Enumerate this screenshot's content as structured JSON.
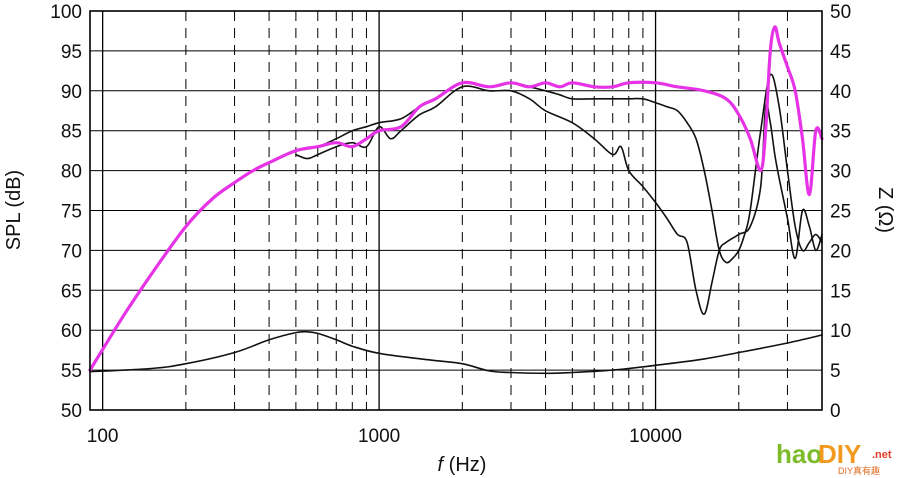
{
  "chart_data": {
    "type": "line",
    "xlabel_italic": "f",
    "xlabel_rest": " (Hz)",
    "ylabel": "SPL (dB)",
    "y2label": "Z (Ω)",
    "x_scale": "log",
    "xlim": [
      90,
      40000
    ],
    "ylim": [
      50,
      100
    ],
    "y2lim": [
      0,
      50
    ],
    "x_ticks": [
      100,
      1000,
      10000
    ],
    "x_tick_labels": [
      "100",
      "1000",
      "10000"
    ],
    "y_ticks": [
      50,
      55,
      60,
      65,
      70,
      75,
      80,
      85,
      90,
      95,
      100
    ],
    "y_tick_labels": [
      "50",
      "55",
      "60",
      "65",
      "70",
      "75",
      "80",
      "85",
      "90",
      "95",
      "100"
    ],
    "y2_ticks": [
      0,
      5,
      10,
      15,
      20,
      25,
      30,
      35,
      40,
      45,
      50
    ],
    "y2_tick_labels": [
      "0",
      "5",
      "10",
      "15",
      "20",
      "25",
      "30",
      "35",
      "40",
      "45",
      "50"
    ],
    "grid": true,
    "colors": {
      "spl_axis": "#000000",
      "spl_black": "#111111",
      "spl_magenta": "#e633e6",
      "impedance": "#111111"
    },
    "series": [
      {
        "axis": "left",
        "color": "#e633e6",
        "width": 3.2,
        "x": [
          90,
          120,
          150,
          200,
          250,
          300,
          350,
          400,
          500,
          600,
          700,
          800,
          900,
          1000,
          1200,
          1400,
          1600,
          2000,
          2500,
          3000,
          3500,
          4000,
          4500,
          5000,
          6000,
          7000,
          8000,
          10000,
          12000,
          15000,
          18000,
          20000,
          22000,
          24000,
          25000,
          26000,
          27000,
          28000,
          30000,
          32000,
          34000,
          36000,
          38000,
          40000
        ],
        "y": [
          55,
          62,
          67,
          73,
          76.5,
          78.5,
          80,
          81,
          82.5,
          83,
          83.5,
          83,
          84,
          85,
          85.5,
          88,
          89,
          91,
          90.5,
          91,
          90.5,
          91,
          90.5,
          91,
          90.5,
          90.5,
          91,
          91,
          90.5,
          90,
          89,
          87,
          84,
          80,
          85,
          95,
          98,
          96,
          93,
          90,
          84,
          77,
          85,
          84
        ]
      },
      {
        "axis": "left",
        "color": "#111111",
        "width": 1.6,
        "x": [
          500,
          600,
          700,
          800,
          900,
          1000,
          1200,
          1400,
          1600,
          2000,
          2500,
          3000,
          3500,
          4000,
          4500,
          5000,
          6000,
          7000,
          8000,
          9000,
          10000,
          11000,
          12000,
          13000,
          14000,
          15000,
          16000,
          17000,
          18000,
          19000,
          20000,
          21000,
          22000,
          24000,
          26000,
          28000,
          30000,
          32000,
          34000,
          36000,
          38000,
          40000
        ],
        "y": [
          82.5,
          83,
          84,
          85,
          85.5,
          86,
          86.5,
          88,
          89,
          91,
          90.5,
          91,
          90.5,
          90,
          89.5,
          89,
          89,
          89,
          89,
          89,
          88.5,
          88,
          87.5,
          86,
          84,
          80,
          75,
          70,
          68.5,
          69,
          70,
          72,
          75,
          85,
          92,
          88,
          80,
          73,
          70,
          71,
          72,
          71
        ]
      },
      {
        "axis": "left",
        "color": "#111111",
        "width": 1.6,
        "x": [
          500,
          550,
          600,
          700,
          800,
          900,
          1000,
          1100,
          1200,
          1400,
          1600,
          2000,
          2500,
          3000,
          3500,
          4000,
          5000,
          6000,
          7000,
          7500,
          8000,
          9000,
          10000,
          11000,
          12000,
          13000,
          14000,
          15000,
          16000,
          17000,
          18000,
          20000,
          22000,
          24000,
          25000,
          26000,
          27000,
          28000,
          30000,
          32000,
          34000,
          36000,
          38000,
          40000
        ],
        "y": [
          82,
          81.5,
          82,
          83,
          83.5,
          83,
          85.5,
          84,
          85,
          87,
          88,
          90.5,
          90,
          90,
          89,
          87.5,
          86,
          84,
          82,
          83,
          80,
          78,
          76,
          74,
          72,
          71,
          65,
          62,
          66,
          70,
          71,
          72,
          73,
          78,
          88,
          86,
          82,
          79,
          74,
          69,
          75,
          73,
          70,
          72
        ]
      },
      {
        "axis": "right",
        "color": "#111111",
        "width": 1.6,
        "x": [
          90,
          150,
          200,
          300,
          400,
          500,
          550,
          600,
          700,
          800,
          1000,
          1500,
          2000,
          2500,
          3000,
          4000,
          5000,
          7000,
          10000,
          15000,
          20000,
          30000,
          40000
        ],
        "y": [
          4.8,
          5.2,
          5.8,
          7.2,
          8.8,
          9.7,
          9.8,
          9.6,
          8.8,
          8,
          7.1,
          6.3,
          5.8,
          4.9,
          4.7,
          4.6,
          4.7,
          5,
          5.6,
          6.4,
          7.2,
          8.4,
          9.4
        ]
      }
    ]
  },
  "watermark": {
    "hao": "hao",
    "diy": "DIY",
    "net": ".net",
    "subtitle": "DIY真有趣"
  }
}
